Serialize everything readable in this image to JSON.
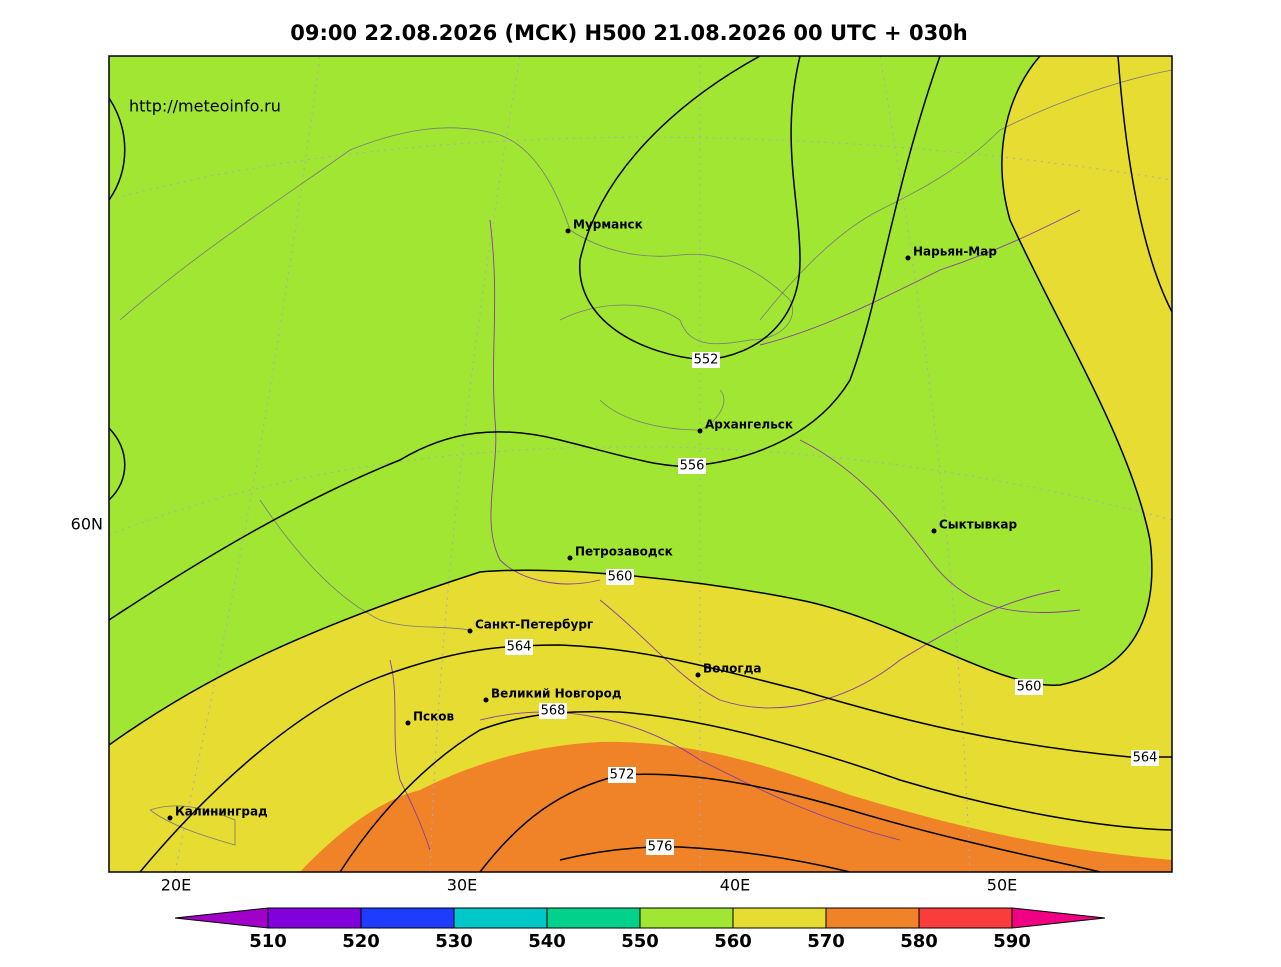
{
  "title": "09:00 22.08.2026 (МСК) H500  21.08.2026 00 UTC + 030h",
  "watermark": "http://meteoinfo.ru",
  "cities": [
    {
      "name": "Мурманск"
    },
    {
      "name": "Нарьян-Мар"
    },
    {
      "name": "Архангельск"
    },
    {
      "name": "Сыктывкар"
    },
    {
      "name": "Петрозаводск"
    },
    {
      "name": "Санкт-Петербург"
    },
    {
      "name": "Вологда"
    },
    {
      "name": "Великий Новгород"
    },
    {
      "name": "Псков"
    },
    {
      "name": "Калининград"
    }
  ],
  "contour_labels": [
    552,
    556,
    560,
    560,
    564,
    564,
    568,
    572,
    576
  ],
  "lon_labels": [
    "20E",
    "30E",
    "40E",
    "50E"
  ],
  "lat_labels": [
    "60N"
  ],
  "colorbar": {
    "ticks": [
      510,
      520,
      530,
      540,
      550,
      560,
      570,
      580,
      590
    ],
    "colors": [
      "#a000c8",
      "#8200dc",
      "#1e3cff",
      "#00c8c8",
      "#00d28c",
      "#a0e632",
      "#e6dc32",
      "#f08228",
      "#fa3c3c",
      "#f00082"
    ]
  }
}
